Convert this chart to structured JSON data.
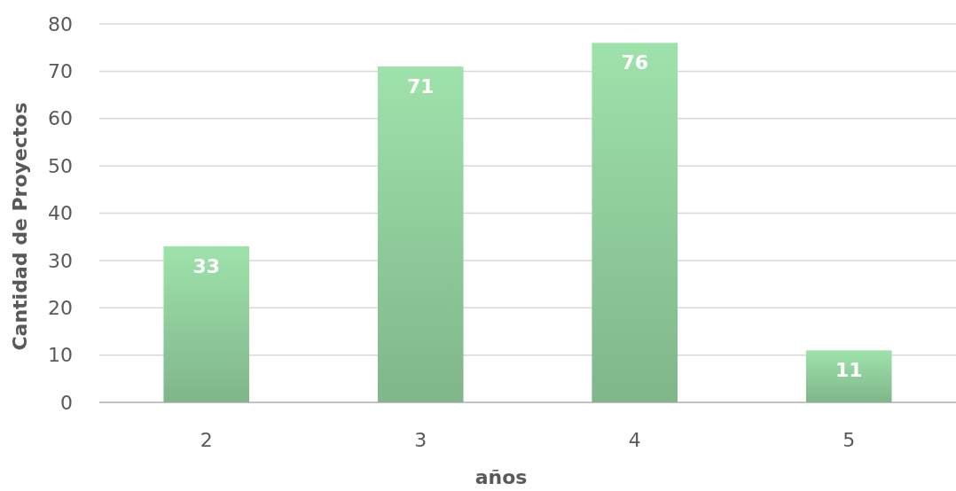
{
  "chart_data": {
    "type": "bar",
    "xlabel": "años",
    "ylabel": "Cantidad de Proyectos",
    "categories": [
      "2",
      "3",
      "4",
      "5"
    ],
    "values": [
      33,
      71,
      76,
      11
    ],
    "color": "#8ecb9a",
    "ylim": [
      0,
      80
    ],
    "yticks": [
      0,
      10,
      20,
      30,
      40,
      50,
      60,
      70,
      80
    ],
    "grid": "y",
    "data_labels": true
  }
}
